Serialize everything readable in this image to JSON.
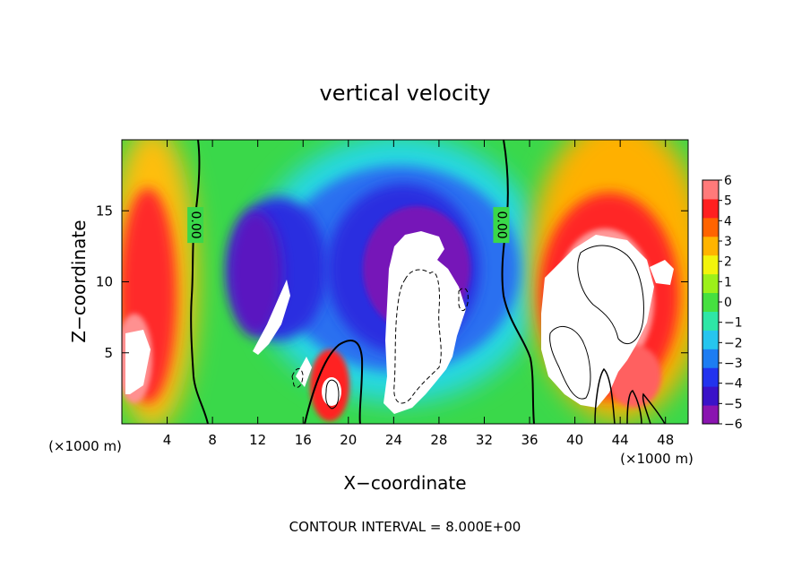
{
  "chart_data": {
    "type": "heatmap",
    "title": "vertical velocity",
    "xlabel": "X−coordinate",
    "ylabel": "Z−coordinate",
    "x_unit_left": "(×1000 m)",
    "x_unit_right": "(×1000 m)",
    "footer": "CONTOUR INTERVAL = 8.000E+00",
    "xlim": [
      0,
      50
    ],
    "ylim": [
      0,
      20
    ],
    "x_ticks": [
      4,
      8,
      12,
      16,
      20,
      24,
      28,
      32,
      36,
      40,
      44,
      48
    ],
    "x_tick_labels": [
      "4",
      "8",
      "12",
      "16",
      "20",
      "24",
      "28",
      "32",
      "36",
      "40",
      "44",
      "48"
    ],
    "y_ticks": [
      5,
      10,
      15
    ],
    "y_tick_labels": [
      "5",
      "10",
      "15"
    ],
    "contour_labels": [
      {
        "text": "0.00",
        "x": 6.5,
        "y": 14
      },
      {
        "text": "0.00",
        "x": 33.5,
        "y": 14
      }
    ],
    "colorbar": {
      "min": -6,
      "max": 6,
      "tick_labels": [
        "6",
        "5",
        "4",
        "3",
        "2",
        "1",
        "0",
        "−1",
        "−2",
        "−3",
        "−4",
        "−5",
        "−6"
      ],
      "colors": [
        "#8a14b0",
        "#3a12c8",
        "#2233ee",
        "#1d7df2",
        "#26c5ee",
        "#2ee6a6",
        "#46e040",
        "#9cf01a",
        "#f2f40c",
        "#ffb400",
        "#ff6400",
        "#ff2020",
        "#ff7a7a"
      ]
    },
    "features": [
      {
        "kind": "downdraft",
        "x": 26.5,
        "y": 7.5,
        "w": -6
      },
      {
        "kind": "downdraft",
        "x": 14,
        "y": 8,
        "w": -5
      },
      {
        "kind": "downdraft",
        "x": 31,
        "y": 9,
        "w": -4
      },
      {
        "kind": "updraft",
        "x": 43,
        "y": 8,
        "w": 6
      },
      {
        "kind": "updraft",
        "x": 1.5,
        "y": 7,
        "w": 6
      },
      {
        "kind": "updraft",
        "x": 18.5,
        "y": 2.5,
        "w": 6
      },
      {
        "kind": "updraft",
        "x": 47,
        "y": 10.5,
        "w": 5
      }
    ]
  }
}
